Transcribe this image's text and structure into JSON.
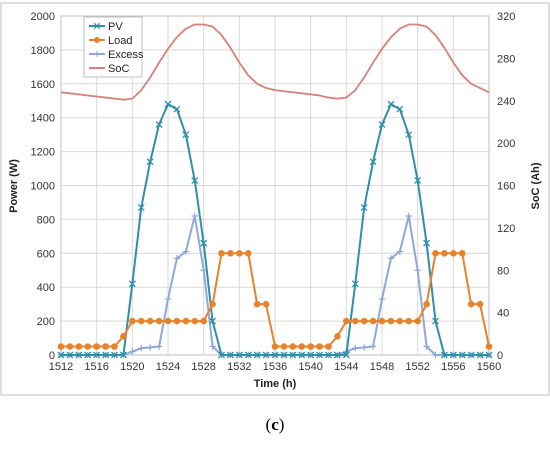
{
  "chart_data": {
    "type": "line",
    "title": "",
    "xlabel": "Time (h)",
    "ylabel": "Power (W)",
    "y2label": "SoC (Ah)",
    "xlim": [
      1512,
      1560
    ],
    "ylim": [
      0,
      2000
    ],
    "y2lim": [
      0,
      320
    ],
    "xticks": [
      1512,
      1516,
      1520,
      1524,
      1528,
      1532,
      1536,
      1540,
      1544,
      1548,
      1552,
      1556,
      1560
    ],
    "yticks": [
      0,
      200,
      400,
      600,
      800,
      1000,
      1200,
      1400,
      1600,
      1800,
      2000
    ],
    "y2ticks": [
      0,
      40,
      80,
      120,
      160,
      200,
      240,
      280,
      320
    ],
    "grid": true,
    "legend_position": "top-left",
    "x": [
      1512,
      1513,
      1514,
      1515,
      1516,
      1517,
      1518,
      1519,
      1520,
      1521,
      1522,
      1523,
      1524,
      1525,
      1526,
      1527,
      1528,
      1529,
      1530,
      1531,
      1532,
      1533,
      1534,
      1535,
      1536,
      1537,
      1538,
      1539,
      1540,
      1541,
      1542,
      1543,
      1544,
      1545,
      1546,
      1547,
      1548,
      1549,
      1550,
      1551,
      1552,
      1553,
      1554,
      1555,
      1556,
      1557,
      1558,
      1559,
      1560
    ],
    "series": [
      {
        "name": "PV",
        "axis": "left",
        "color": "#2e8fa8",
        "marker": "x",
        "values": [
          0,
          0,
          0,
          0,
          0,
          0,
          0,
          0,
          420,
          870,
          1140,
          1360,
          1480,
          1450,
          1300,
          1030,
          660,
          200,
          0,
          0,
          0,
          0,
          0,
          0,
          0,
          0,
          0,
          0,
          0,
          0,
          0,
          0,
          0,
          420,
          870,
          1140,
          1360,
          1480,
          1450,
          1300,
          1030,
          660,
          200,
          0,
          0,
          0,
          0,
          0,
          0
        ]
      },
      {
        "name": "Load",
        "axis": "left",
        "color": "#e6832d",
        "marker": "circle",
        "values": [
          50,
          50,
          50,
          50,
          50,
          50,
          50,
          110,
          200,
          200,
          200,
          200,
          200,
          200,
          200,
          200,
          200,
          300,
          600,
          600,
          600,
          600,
          300,
          300,
          50,
          50,
          50,
          50,
          50,
          50,
          50,
          110,
          200,
          200,
          200,
          200,
          200,
          200,
          200,
          200,
          200,
          300,
          600,
          600,
          600,
          600,
          300,
          300,
          50
        ]
      },
      {
        "name": "Excess",
        "axis": "left",
        "color": "#8ea9d8",
        "marker": "plus",
        "values": [
          0,
          0,
          0,
          0,
          0,
          0,
          0,
          0,
          20,
          40,
          45,
          50,
          330,
          570,
          610,
          820,
          500,
          50,
          0,
          0,
          0,
          0,
          0,
          0,
          0,
          0,
          0,
          0,
          0,
          0,
          0,
          0,
          20,
          40,
          45,
          50,
          330,
          570,
          610,
          820,
          500,
          50,
          0,
          0,
          0,
          0,
          0,
          0,
          0
        ]
      },
      {
        "name": "SoC",
        "axis": "right",
        "color": "#d9807a",
        "marker": "none",
        "values": [
          248,
          247,
          246,
          245,
          244,
          243,
          242,
          241,
          242,
          250,
          262,
          276,
          289,
          300,
          308,
          312,
          312,
          310,
          302,
          290,
          276,
          264,
          256,
          252,
          250,
          249,
          248,
          247,
          246,
          245,
          243,
          242,
          243,
          250,
          262,
          276,
          289,
          300,
          308,
          312,
          312,
          310,
          302,
          290,
          276,
          264,
          256,
          252,
          248
        ]
      }
    ]
  },
  "caption": {
    "open": "(",
    "letter": "c",
    "close": ")"
  }
}
